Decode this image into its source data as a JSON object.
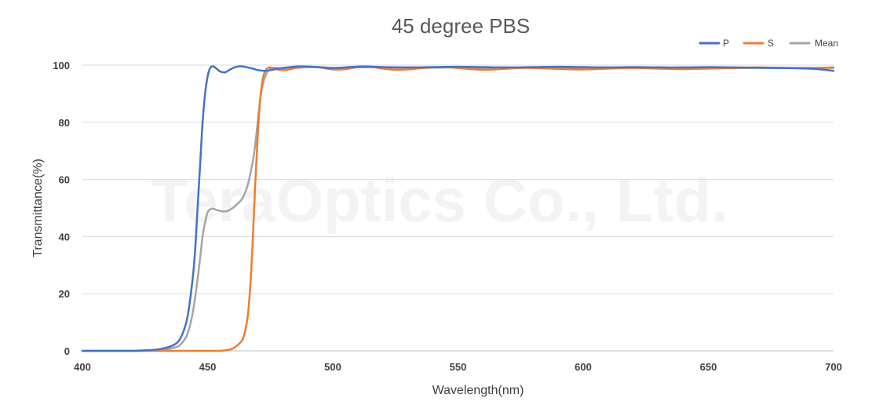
{
  "chart_data": {
    "type": "line",
    "title": "45 degree PBS",
    "xlabel": "Wavelength(nm)",
    "ylabel": "Transmittance(%)",
    "xlim": [
      400,
      700
    ],
    "ylim": [
      0,
      100
    ],
    "xticks": [
      400,
      450,
      500,
      550,
      600,
      650,
      700
    ],
    "yticks": [
      0,
      20,
      40,
      60,
      80,
      100
    ],
    "grid": "horizontal",
    "legend_position": "top-right",
    "watermark": "TeraOptics Co., Ltd.",
    "series": [
      {
        "name": "P",
        "color": "#4472C4",
        "x": [
          400,
          420,
          425,
          430,
          435,
          438,
          440,
          442,
          444,
          445,
          446,
          447,
          448,
          449,
          450,
          451,
          452,
          453,
          455,
          457,
          459,
          461,
          463,
          465,
          468,
          470,
          473,
          476,
          480,
          485,
          490,
          495,
          500,
          505,
          510,
          515,
          520,
          530,
          540,
          550,
          560,
          570,
          580,
          590,
          600,
          610,
          620,
          630,
          640,
          650,
          660,
          670,
          680,
          690,
          695,
          700
        ],
        "y": [
          0,
          0,
          0.2,
          0.5,
          1.5,
          3,
          6,
          12,
          25,
          35,
          50,
          65,
          80,
          90,
          96,
          99,
          99.6,
          99.2,
          97.8,
          97.5,
          98.5,
          99.3,
          99.6,
          99.4,
          98.8,
          98.3,
          98,
          98.4,
          99,
          99.5,
          99.5,
          99.2,
          99,
          99.2,
          99.5,
          99.5,
          99.3,
          99.2,
          99.3,
          99.4,
          99.3,
          99.2,
          99.3,
          99.4,
          99.3,
          99.2,
          99.3,
          99.2,
          99.2,
          99.3,
          99.2,
          99.1,
          99,
          98.8,
          98.5,
          98
        ]
      },
      {
        "name": "S",
        "color": "#ED7D31",
        "x": [
          400,
          450,
          455,
          458,
          460,
          462,
          464,
          465,
          466,
          467,
          468,
          469,
          470,
          471,
          472,
          473,
          474,
          475,
          476,
          478,
          480,
          483,
          486,
          490,
          495,
          500,
          505,
          510,
          515,
          520,
          525,
          530,
          535,
          540,
          545,
          550,
          555,
          560,
          565,
          570,
          575,
          580,
          590,
          600,
          610,
          620,
          630,
          640,
          650,
          660,
          670,
          680,
          690,
          700
        ],
        "y": [
          0,
          0,
          0,
          0.3,
          0.8,
          2,
          4,
          7,
          12,
          22,
          38,
          58,
          75,
          88,
          95,
          98,
          99,
          99.2,
          99,
          98.5,
          98.2,
          98.6,
          99.2,
          99.5,
          99.2,
          98.5,
          98.6,
          99.3,
          99.4,
          98.8,
          98.4,
          98.5,
          98.9,
          99.2,
          99.3,
          99,
          98.6,
          98.4,
          98.5,
          98.8,
          99,
          99,
          98.7,
          98.5,
          98.8,
          99,
          98.8,
          98.6,
          98.8,
          99,
          99.2,
          99,
          99,
          99.2
        ]
      },
      {
        "name": "Mean",
        "color": "#A5A5A5",
        "x": [
          400,
          420,
          425,
          430,
          435,
          438,
          440,
          442,
          444,
          446,
          448,
          449,
          450,
          451,
          452,
          454,
          456,
          458,
          460,
          462,
          464,
          466,
          468,
          469,
          470,
          471,
          472,
          473,
          474,
          475,
          476,
          477,
          478,
          480,
          485,
          490,
          495,
          500,
          505,
          510,
          520,
          530,
          540,
          550,
          560,
          570,
          580,
          590,
          600,
          610,
          620,
          630,
          640,
          650,
          660,
          670,
          680,
          690,
          700
        ],
        "y": [
          0,
          0,
          0.1,
          0.3,
          0.8,
          1.5,
          3,
          6,
          13,
          25,
          40,
          45,
          48.5,
          49.5,
          49.8,
          49.2,
          48.8,
          49,
          50,
          51.5,
          53.5,
          58,
          66,
          72,
          80,
          88,
          93,
          96,
          97.8,
          98.7,
          99,
          99.1,
          99,
          98.8,
          99,
          99.3,
          99.3,
          99,
          99,
          99.2,
          99.2,
          99,
          99.1,
          99.2,
          99,
          99,
          99.2,
          99.2,
          99,
          99,
          99.1,
          99.2,
          99,
          99,
          99,
          99,
          99,
          99,
          99
        ]
      }
    ]
  }
}
